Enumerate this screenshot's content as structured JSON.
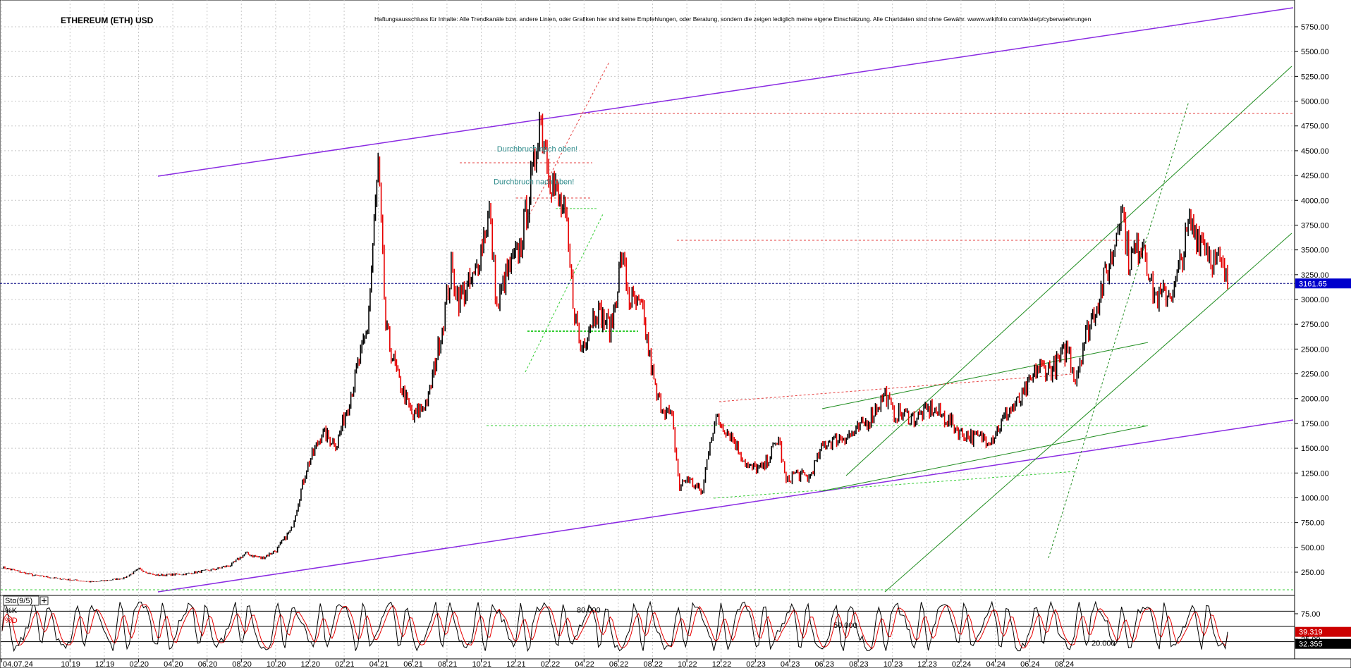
{
  "title": "ETHEREUM (ETH) USD",
  "disclaimer": "Haftungsausschluss für Inhalte: Alle Trendkanäle bzw. andere Linien, oder Grafiken hier sind keine Empfehlungen, oder Beratung, sondern die zeigen lediglich meine eigene Einschätzung. Alle Chartdaten sind ohne Gewähr.  wwww.wikifolio.com/de/de/p/cyberwaehrungen",
  "colors": {
    "price_up": "#000000",
    "price_down": "#e60000",
    "purple_channel": "#8a2be2",
    "green_channel": "#1e8c1e",
    "dotted_green": "#33cc33",
    "dotted_red": "#e64040",
    "current_line": "#000080",
    "current_tag_bg": "#0000cc",
    "annotation": "#2e8b8b",
    "k_line": "#000000",
    "d_line": "#e60000"
  },
  "chart_data": [
    {
      "type": "line",
      "name": "price-panel",
      "title": "ETHEREUM (ETH) USD",
      "y_ticks": [
        "5750.00",
        "5500.00",
        "5250.00",
        "5000.00",
        "4750.00",
        "4500.00",
        "4250.00",
        "4000.00",
        "3750.00",
        "3500.00",
        "3250.00",
        "3000.00",
        "2750.00",
        "2500.00",
        "2250.00",
        "2000.00",
        "1750.00",
        "1500.00",
        "1250.00",
        "1000.00",
        "750.00",
        "500.00",
        "250.00"
      ],
      "y_tick_values": [
        5750,
        5500,
        5250,
        5000,
        4750,
        4500,
        4250,
        4000,
        3750,
        3500,
        3250,
        3000,
        2750,
        2500,
        2250,
        2000,
        1750,
        1500,
        1250,
        1000,
        750,
        500,
        250
      ],
      "ylim": [
        0,
        5950
      ],
      "current_price": 3161.65,
      "current_price_label": "3161.65",
      "x_ticks": [
        "04.07.24",
        "10.19",
        "12.19",
        "02.20",
        "04.20",
        "06.20",
        "08.20",
        "10.20",
        "12.20",
        "02.21",
        "04.21",
        "06.21",
        "08.21",
        "10.21",
        "12.21",
        "02.22",
        "04.22",
        "06.22",
        "08.22",
        "10.22",
        "12.22",
        "02.23",
        "04.23",
        "06.23",
        "08.23",
        "10.23",
        "12.23",
        "02.24",
        "04.24",
        "06.24",
        "08.24"
      ],
      "x_tick_months": [
        -3,
        1,
        3,
        5,
        7,
        9,
        11,
        13,
        15,
        17,
        19,
        21,
        23,
        25,
        27,
        29,
        31,
        33,
        35,
        37,
        39,
        41,
        43,
        45,
        47,
        49,
        51,
        53,
        55,
        57,
        59
      ],
      "x_month_zero": "08.2019",
      "price_path": [
        [
          0,
          300
        ],
        [
          2,
          220
        ],
        [
          4,
          180
        ],
        [
          6,
          150
        ],
        [
          8,
          190
        ],
        [
          9,
          280
        ],
        [
          10,
          220
        ],
        [
          12,
          230
        ],
        [
          14,
          280
        ],
        [
          15,
          320
        ],
        [
          16,
          440
        ],
        [
          17,
          390
        ],
        [
          18,
          470
        ],
        [
          19,
          680
        ],
        [
          20,
          1300
        ],
        [
          21,
          1650
        ],
        [
          22,
          1550
        ],
        [
          23,
          2100
        ],
        [
          24,
          2700
        ],
        [
          24.7,
          4350
        ],
        [
          25.2,
          2700
        ],
        [
          26,
          2200
        ],
        [
          27,
          1800
        ],
        [
          28,
          2000
        ],
        [
          29,
          2800
        ],
        [
          29.5,
          3300
        ],
        [
          30,
          3000
        ],
        [
          31,
          3200
        ],
        [
          32,
          3900
        ],
        [
          32.5,
          2900
        ],
        [
          33,
          3200
        ],
        [
          34,
          3500
        ],
        [
          35,
          4400
        ],
        [
          35.3,
          4850
        ],
        [
          35.7,
          4550
        ],
        [
          36,
          4250
        ],
        [
          37,
          3800
        ],
        [
          37.5,
          3000
        ],
        [
          38,
          2500
        ],
        [
          39,
          2900
        ],
        [
          40,
          2700
        ],
        [
          40.7,
          3450
        ],
        [
          41.2,
          3000
        ],
        [
          42,
          2900
        ],
        [
          43,
          2000
        ],
        [
          44,
          1800
        ],
        [
          44.5,
          1100
        ],
        [
          45,
          1200
        ],
        [
          46,
          1050
        ],
        [
          46.5,
          1600
        ],
        [
          47,
          1800
        ],
        [
          48,
          1600
        ],
        [
          49,
          1300
        ],
        [
          50,
          1300
        ],
        [
          51,
          1600
        ],
        [
          51.5,
          1150
        ],
        [
          52,
          1250
        ],
        [
          53,
          1200
        ],
        [
          54,
          1550
        ],
        [
          55,
          1600
        ],
        [
          56,
          1650
        ],
        [
          57,
          1800
        ],
        [
          58,
          2050
        ],
        [
          58.5,
          1850
        ],
        [
          59,
          1850
        ],
        [
          60,
          1800
        ],
        [
          61,
          1900
        ],
        [
          62,
          1800
        ],
        [
          63,
          1650
        ],
        [
          64,
          1600
        ],
        [
          65,
          1600
        ],
        [
          66,
          1850
        ],
        [
          67,
          2000
        ],
        [
          68,
          2300
        ],
        [
          69,
          2300
        ],
        [
          70,
          2500
        ],
        [
          70.5,
          2200
        ],
        [
          71,
          2550
        ],
        [
          72,
          3000
        ],
        [
          73,
          3500
        ],
        [
          73.5,
          4000
        ],
        [
          74,
          3400
        ],
        [
          75,
          3600
        ],
        [
          75.5,
          3100
        ],
        [
          76,
          3000
        ],
        [
          77,
          3100
        ],
        [
          78,
          3750
        ],
        [
          79,
          3600
        ],
        [
          79.5,
          3400
        ],
        [
          80,
          3350
        ],
        [
          80.5,
          3161.65
        ]
      ],
      "price_month_zero": "06.2019",
      "price_month_scale": 0.75,
      "annotations": [
        {
          "text": "Durchbruch nach oben!",
          "x_month": 29.3,
          "y": 4520
        },
        {
          "text": "Durchbruch nach oben!",
          "x_month": 28.7,
          "y": 4190
        }
      ]
    },
    {
      "type": "line",
      "name": "stochastic-panel",
      "title": "Sto(9/5)",
      "series": [
        {
          "name": "%K"
        },
        {
          "name": "%D"
        }
      ],
      "levels": [
        {
          "value": 80,
          "label": "80.000"
        },
        {
          "value": 50,
          "label": "50.000"
        },
        {
          "value": 20,
          "label": "20.000"
        }
      ],
      "y_ticks": [
        "75.00",
        "25.00"
      ],
      "y_tick_values": [
        75,
        25
      ],
      "ylim": [
        0,
        100
      ],
      "k_value": 39.319,
      "k_label": "39.319",
      "d_value": 32.355,
      "d_label": "32.355",
      "cycles": 55
    }
  ]
}
